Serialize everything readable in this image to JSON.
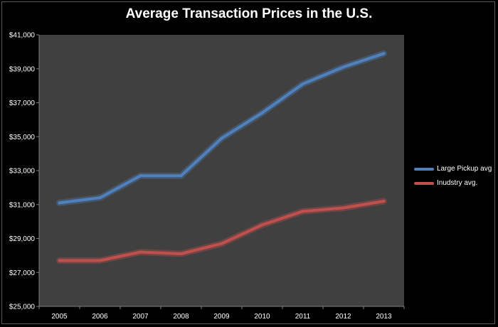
{
  "chart_data": {
    "type": "line",
    "title": "Average Transaction Prices in the U.S.",
    "xlabel": "",
    "ylabel": "",
    "categories": [
      "2005",
      "2006",
      "2007",
      "2008",
      "2009",
      "2010",
      "2011",
      "2012",
      "2013"
    ],
    "ylim": [
      25000,
      41000
    ],
    "yticks": [
      25000,
      27000,
      29000,
      31000,
      33000,
      35000,
      37000,
      39000,
      41000
    ],
    "ytick_labels": [
      "$25,000",
      "$27,000",
      "$29,000",
      "$31,000",
      "$33,000",
      "$35,000",
      "$37,000",
      "$39,000",
      "$41,000"
    ],
    "grid": false,
    "legend_position": "right",
    "series": [
      {
        "name": "Large Pickup avg",
        "color": "#4f81bd",
        "values": [
          31100,
          31400,
          32700,
          32700,
          34900,
          36400,
          38100,
          39100,
          39900
        ]
      },
      {
        "name": "Inudstry avg.",
        "color": "#c0504d",
        "values": [
          27700,
          27700,
          28200,
          28100,
          28700,
          29800,
          30600,
          30800,
          31200
        ]
      }
    ]
  },
  "colors": {
    "background": "#000000",
    "plot_area": "#404040",
    "text": "#ffffff"
  }
}
